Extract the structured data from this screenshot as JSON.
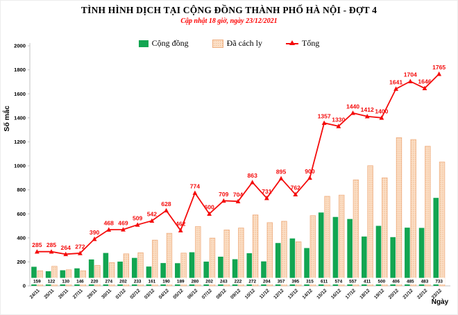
{
  "header": {
    "title": "TÌNH HÌNH DỊCH TẠI CỘNG ĐỒNG THÀNH PHỐ HÀ NỘI - ĐỢT 4",
    "subtitle": "Cập nhật 18 giờ, ngày 23/12/2021"
  },
  "legend": [
    {
      "label": "Cộng đồng",
      "swatch": "green-square",
      "color": "#12a551"
    },
    {
      "label": "Đã cách ly",
      "swatch": "peach-dotted-square",
      "color": "#fbdfc6"
    },
    {
      "label": "Tổng",
      "swatch": "red-line-triangle",
      "color": "#f40b0b"
    }
  ],
  "chart_data": {
    "type": "bar",
    "title": "TÌNH HÌNH DỊCH TẠI CỘNG ĐỒNG THÀNH PHỐ HÀ NỘI - ĐỢT 4",
    "subtitle": "Cập nhật 18 giờ, ngày 23/12/2021",
    "xlabel": "Ngày",
    "ylabel": "Số mắc",
    "ylim": [
      0,
      2000
    ],
    "yticks": [
      0,
      200,
      400,
      600,
      800,
      1000,
      1200,
      1400,
      1600,
      1800,
      2000
    ],
    "grid": false,
    "legend_position": "top",
    "categories": [
      "24/11",
      "25/11",
      "26/11",
      "27/11",
      "29/11",
      "30/11",
      "01/12",
      "02/12",
      "03/12",
      "04/12",
      "05/12",
      "06/12",
      "07/12",
      "08/12",
      "09/12",
      "10/12",
      "11/12",
      "12/12",
      "13/12",
      "14/12",
      "15/12",
      "16/12",
      "17/12",
      "18/12",
      "19/12",
      "20/12",
      "21/12",
      "22/12",
      "23/12"
    ],
    "series": [
      {
        "name": "Cộng đồng",
        "type": "bar",
        "color": "#12a551",
        "values": [
          159,
          122,
          130,
          146,
          220,
          274,
          202,
          233,
          161,
          190,
          189,
          280,
          202,
          243,
          222,
          272,
          204,
          357,
          395,
          315,
          611,
          574,
          557,
          411,
          500,
          406,
          485,
          483,
          733
        ],
        "labels_shown": true
      },
      {
        "name": "Đã cách ly",
        "type": "bar",
        "color": "#fbdfc6",
        "pattern": "dots",
        "border_color": "#efae80",
        "values": [
          126,
          163,
          134,
          126,
          170,
          194,
          267,
          276,
          381,
          438,
          273,
          494,
          398,
          466,
          482,
          591,
          527,
          538,
          367,
          585,
          746,
          756,
          883,
          1001,
          900,
          1235,
          1219,
          1163,
          1032
        ],
        "labels_shown": false
      },
      {
        "name": "Tổng",
        "type": "line",
        "color": "#f40b0b",
        "marker": "triangle",
        "values": [
          285,
          285,
          264,
          272,
          390,
          468,
          469,
          509,
          542,
          628,
          462,
          774,
          600,
          709,
          704,
          863,
          731,
          895,
          762,
          900,
          1357,
          1330,
          1440,
          1412,
          1400,
          1641,
          1704,
          1646,
          1765
        ],
        "labels_shown": true
      }
    ]
  }
}
